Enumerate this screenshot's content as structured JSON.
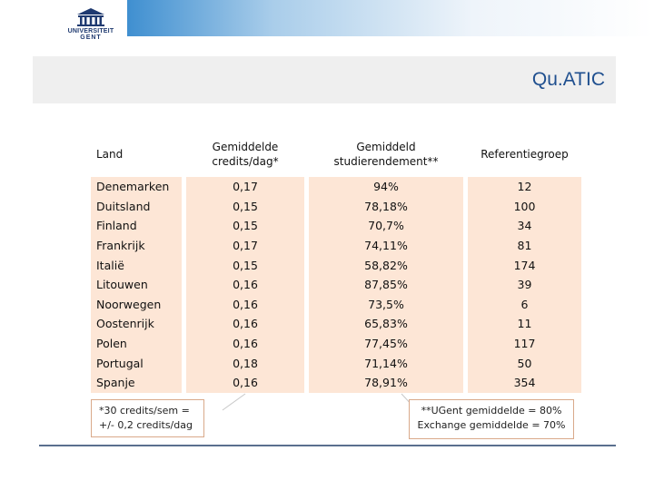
{
  "header": {
    "logo_line1": "UNIVERSITEIT",
    "logo_line2": "GENT",
    "title": "Qu.ATIC"
  },
  "table": {
    "columns": [
      "Land",
      "Gemiddelde credits/dag*",
      "Gemiddeld studierendement**",
      "Referentiegroep"
    ],
    "column_lines": {
      "c1_line1": "Gemiddelde",
      "c1_line2": "credits/dag*",
      "c2_line1": "Gemiddeld",
      "c2_line2": "studierendement**"
    },
    "rows": [
      {
        "land": "Denemarken",
        "credits": "0,17",
        "rendement": "94%",
        "groep": "12"
      },
      {
        "land": "Duitsland",
        "credits": "0,15",
        "rendement": "78,18%",
        "groep": "100"
      },
      {
        "land": "Finland",
        "credits": "0,15",
        "rendement": "70,7%",
        "groep": "34"
      },
      {
        "land": "Frankrijk",
        "credits": "0,17",
        "rendement": "74,11%",
        "groep": "81"
      },
      {
        "land": "Italië",
        "credits": "0,15",
        "rendement": "58,82%",
        "groep": "174"
      },
      {
        "land": "Litouwen",
        "credits": "0,16",
        "rendement": "87,85%",
        "groep": "39"
      },
      {
        "land": "Noorwegen",
        "credits": "0,16",
        "rendement": "73,5%",
        "groep": "6"
      },
      {
        "land": "Oostenrijk",
        "credits": "0,16",
        "rendement": "65,83%",
        "groep": "11"
      },
      {
        "land": "Polen",
        "credits": "0,16",
        "rendement": "77,45%",
        "groep": "117"
      },
      {
        "land": "Portugal",
        "credits": "0,18",
        "rendement": "71,14%",
        "groep": "50"
      },
      {
        "land": "Spanje",
        "credits": "0,16",
        "rendement": "78,91%",
        "groep": "354"
      }
    ]
  },
  "notes": {
    "left_line1": "*30 credits/sem =",
    "left_line2": "+/- 0,2 credits/dag",
    "right_line1": "**UGent gemiddelde = 80%",
    "right_line2": "Exchange gemiddelde = 70%"
  },
  "colors": {
    "accent_blue": "#3f8fd0",
    "title_blue": "#1f4f8f",
    "table_fill": "#fde6d6",
    "note_border": "#d9a98a"
  }
}
